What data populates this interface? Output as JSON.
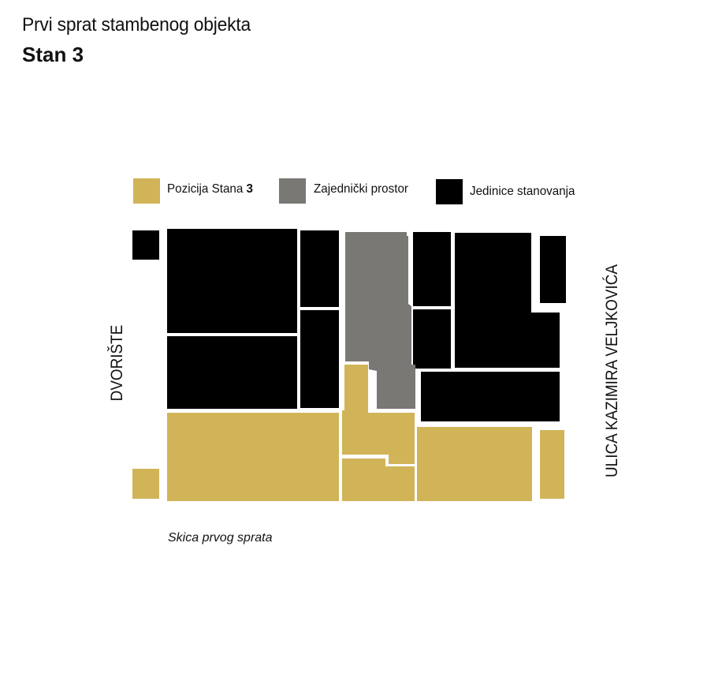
{
  "header": {
    "subtitle": "Prvi sprat stambenog objekta",
    "title": "Stan 3"
  },
  "legend": {
    "items": [
      {
        "label_text": "Pozicija Stana ",
        "label_bold": "3",
        "color": "#D1B458",
        "category": "stan3"
      },
      {
        "label_text": "Zajednički prostor",
        "color": "#7A7875",
        "category": "zajednicki"
      },
      {
        "label_text": "Jedinice stanovanja",
        "color": "#000000",
        "category": "jedinice"
      }
    ]
  },
  "labels": {
    "left_side": "DVORIŠTE",
    "right_side": "ULICA KAZIMIRA VELJKOVIĆA"
  },
  "caption": "Skica prvog sprata",
  "colors": {
    "stan3": "#D1B458",
    "zajednicki": "#7A7875",
    "jedinice": "#000000"
  }
}
